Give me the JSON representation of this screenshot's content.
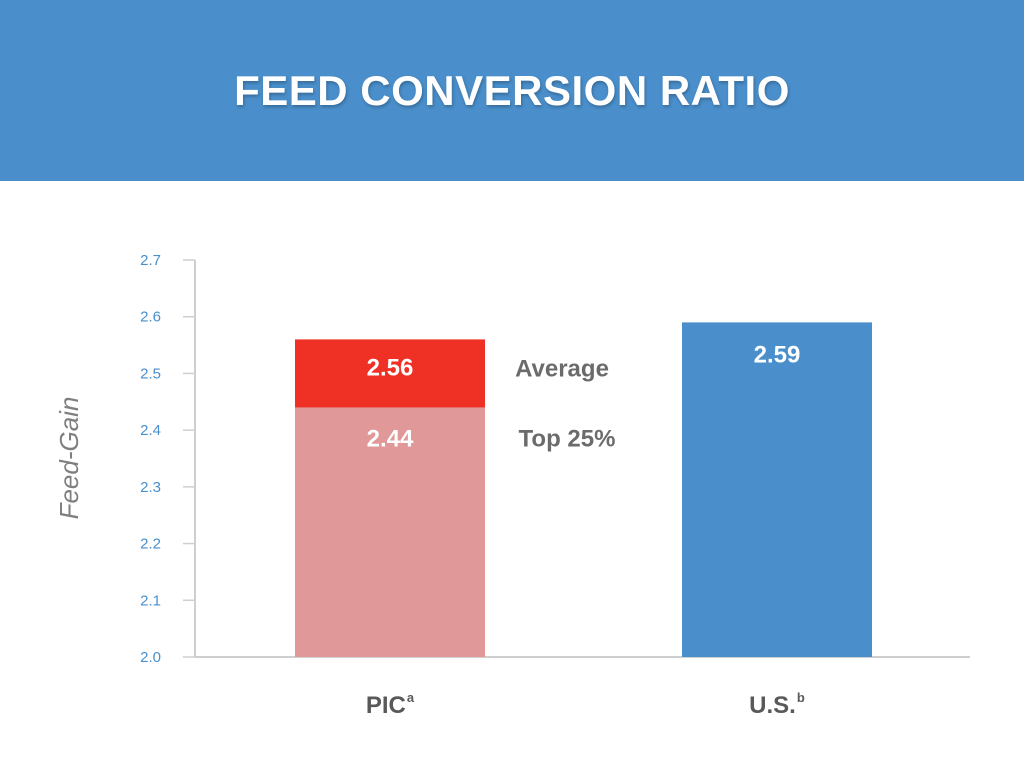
{
  "page": {
    "title": "FEED CONVERSION RATIO"
  },
  "colors": {
    "header": "#4a8fcb",
    "axis_text": "#4a8fcb",
    "axis_line": "#cfcfcf",
    "ylabel": "#7f7f7f",
    "pic_average": "#ee3124",
    "pic_top25": "#e09899",
    "us": "#4a8fcb"
  },
  "chart_data": {
    "type": "bar",
    "title": "",
    "ylabel": "Feed-Gain",
    "xlabel": "",
    "ylim": [
      2.0,
      2.7
    ],
    "yticks": [
      "2.0",
      "2.1",
      "2.2",
      "2.3",
      "2.4",
      "2.5",
      "2.6",
      "2.7"
    ],
    "categories": [
      {
        "label": "PIC",
        "superscript": "a"
      },
      {
        "label": "U.S.",
        "superscript": "b"
      }
    ],
    "series": [
      {
        "name": "Top 25%",
        "values": [
          2.44,
          null
        ],
        "value_labels": [
          "2.44",
          ""
        ]
      },
      {
        "name": "Average",
        "values": [
          2.56,
          null
        ],
        "value_labels": [
          "2.56",
          ""
        ]
      },
      {
        "name": "",
        "values": [
          null,
          2.59
        ],
        "value_labels": [
          "",
          "2.59"
        ]
      }
    ],
    "annotations": [
      "Average",
      "Top 25%"
    ]
  }
}
